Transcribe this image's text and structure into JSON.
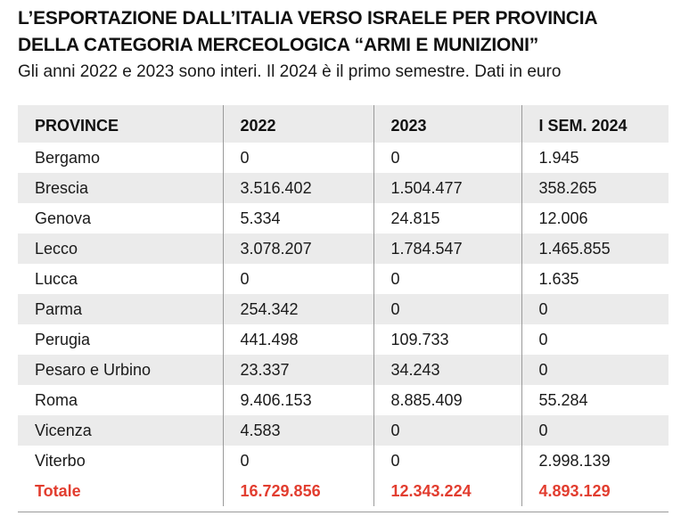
{
  "title_line1": "L’ESPORTAZIONE DALL’ITALIA VERSO ISRAELE PER PROVINCIA",
  "title_line2": "DELLA CATEGORIA MERCEOLOGICA “ARMI E MUNIZIONI”",
  "subtitle": "Gli anni 2022 e 2023 sono interi. Il 2024 è il primo semestre. Dati in euro",
  "colors": {
    "total": "#e23d2f",
    "stripe": "#ebebeb"
  },
  "chart_data": {
    "type": "table",
    "columns": [
      "PROVINCE",
      "2022",
      "2023",
      "I SEM. 2024"
    ],
    "rows": [
      [
        "Bergamo",
        "0",
        "0",
        "1.945"
      ],
      [
        "Brescia",
        "3.516.402",
        "1.504.477",
        "358.265"
      ],
      [
        "Genova",
        "5.334",
        "24.815",
        "12.006"
      ],
      [
        "Lecco",
        "3.078.207",
        "1.784.547",
        "1.465.855"
      ],
      [
        "Lucca",
        "0",
        "0",
        "1.635"
      ],
      [
        "Parma",
        "254.342",
        "0",
        "0"
      ],
      [
        "Perugia",
        "441.498",
        "109.733",
        "0"
      ],
      [
        "Pesaro e Urbino",
        "23.337",
        "34.243",
        "0"
      ],
      [
        "Roma",
        "9.406.153",
        "8.885.409",
        "55.284"
      ],
      [
        "Vicenza",
        "4.583",
        "0",
        "0"
      ],
      [
        "Viterbo",
        "0",
        "0",
        "2.998.139"
      ]
    ],
    "total": [
      "Totale",
      "16.729.856",
      "12.343.224",
      "4.893.129"
    ]
  }
}
